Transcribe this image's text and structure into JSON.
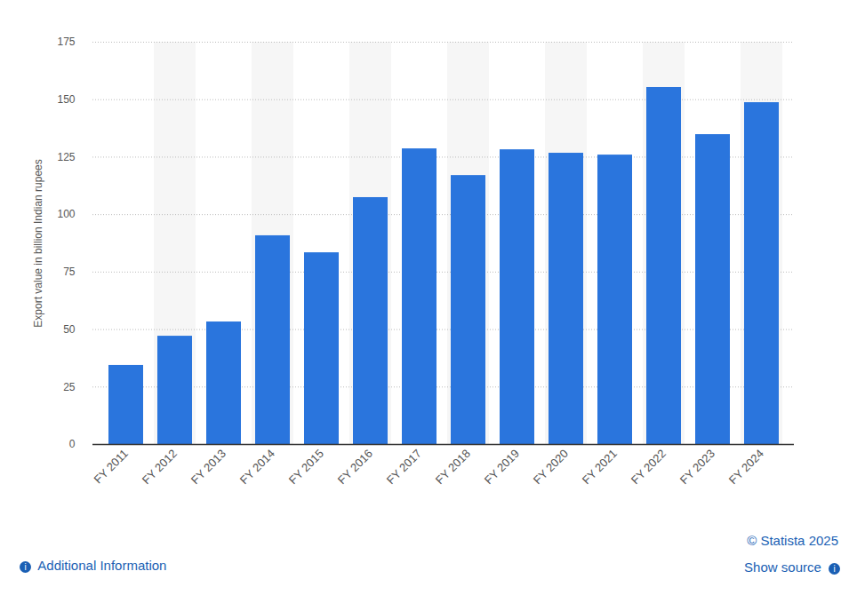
{
  "chart_data": {
    "type": "bar",
    "y_label": "Export value in billion Indian rupees",
    "categories": [
      "FY 2011",
      "FY 2012",
      "FY 2013",
      "FY 2014",
      "FY 2015",
      "FY 2016",
      "FY 2017",
      "FY 2018",
      "FY 2019",
      "FY 2020",
      "FY 2021",
      "FY 2022",
      "FY 2023",
      "FY 2024"
    ],
    "values": [
      34.4,
      47.1,
      53.3,
      90.8,
      83.4,
      107.4,
      128.6,
      117.0,
      128.2,
      126.7,
      125.9,
      155.3,
      134.8,
      148.7
    ],
    "color": "#2a75dd",
    "ylim": [
      0,
      175
    ],
    "yticks": [
      0,
      25,
      50,
      75,
      100,
      125,
      150,
      175
    ],
    "grid": true,
    "annotations": [
      "© Statista 2025",
      "Additional Information",
      "Show source"
    ]
  }
}
